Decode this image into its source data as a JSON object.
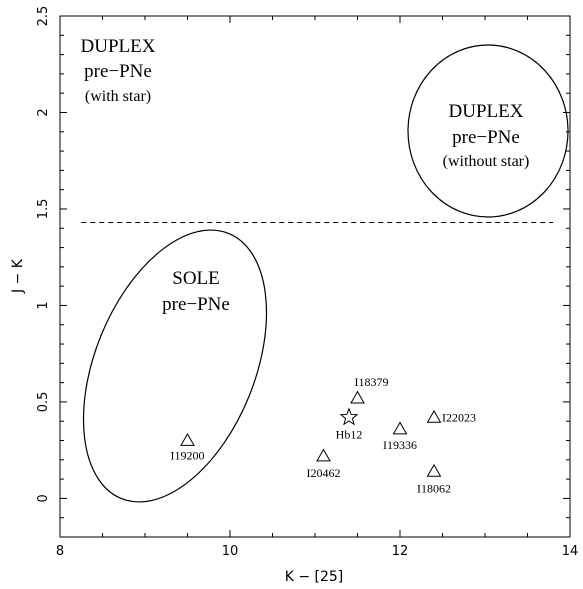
{
  "chart_data": {
    "type": "scatter",
    "xlabel": "K − [25]",
    "ylabel": "J − K",
    "xlim": [
      8,
      14
    ],
    "ylim": [
      -0.2,
      2.5
    ],
    "x_ticks": [
      "8",
      "10",
      "12",
      "14"
    ],
    "y_ticks": [
      "0",
      "0.5",
      "1",
      "1.5",
      "2",
      "2.5"
    ],
    "grid": false,
    "threshold_line": {
      "y": 1.43,
      "style": "dashed"
    },
    "points": [
      {
        "name": "I19200",
        "x": 9.5,
        "y": 0.3,
        "marker": "triangle"
      },
      {
        "name": "I20462",
        "x": 11.1,
        "y": 0.22,
        "marker": "triangle"
      },
      {
        "name": "I18379",
        "x": 11.5,
        "y": 0.52,
        "marker": "triangle"
      },
      {
        "name": "Hb12",
        "x": 11.4,
        "y": 0.42,
        "marker": "star"
      },
      {
        "name": "I19336",
        "x": 12.0,
        "y": 0.36,
        "marker": "triangle"
      },
      {
        "name": "I22023",
        "x": 12.4,
        "y": 0.42,
        "marker": "triangle"
      },
      {
        "name": "I18062",
        "x": 12.4,
        "y": 0.14,
        "marker": "triangle"
      }
    ],
    "regions": [
      {
        "name": "sole",
        "lines": [
          "SOLE",
          "pre−PNe"
        ]
      },
      {
        "name": "duplex-without-star",
        "lines": [
          "DUPLEX",
          "pre−PNe",
          "(without star)"
        ]
      },
      {
        "name": "duplex-with-star",
        "lines": [
          "DUPLEX",
          "pre−PNe",
          "(with star)"
        ]
      }
    ]
  }
}
